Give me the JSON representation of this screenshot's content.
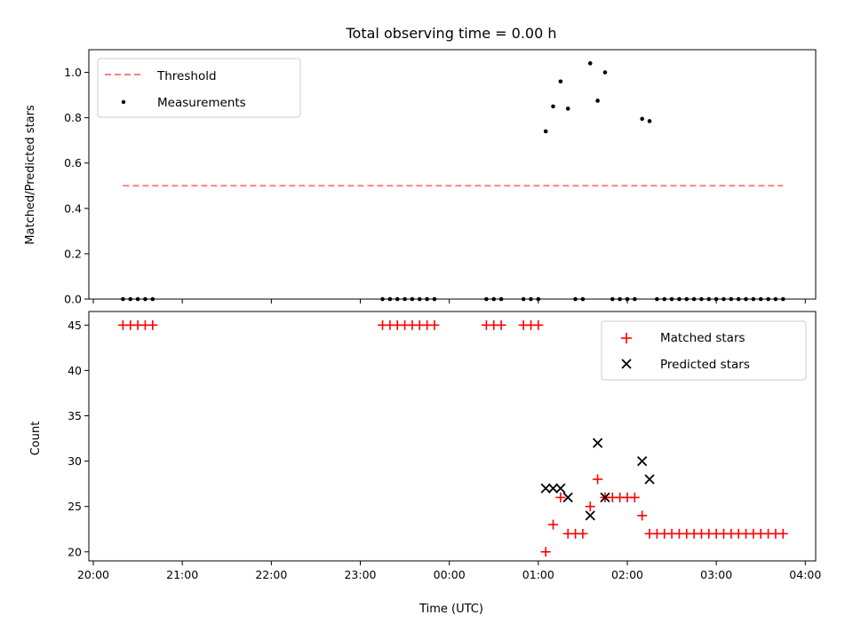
{
  "chart_data": [
    {
      "type": "scatter",
      "title": "Total observing time = 0.00 h",
      "ylabel": "Matched/Predicted stars",
      "xlabel": "",
      "ylim": [
        0,
        1.1
      ],
      "y_ticks": [
        "0.0",
        "0.2",
        "0.4",
        "0.6",
        "0.8",
        "1.0"
      ],
      "y_tick_values": [
        0,
        0.2,
        0.4,
        0.6,
        0.8,
        1.0
      ],
      "legend": {
        "placement": "upper-left"
      },
      "series": [
        {
          "name": "Threshold",
          "kind": "dashed-line",
          "color": "#ff7f7f",
          "x": [
            "20:20",
            "03:45"
          ],
          "y": [
            0.5,
            0.5
          ]
        },
        {
          "name": "Measurements",
          "kind": "points",
          "color": "#000000",
          "x": [
            "20:20",
            "20:25",
            "20:30",
            "20:35",
            "20:40",
            "23:15",
            "23:20",
            "23:25",
            "23:30",
            "23:35",
            "23:40",
            "23:45",
            "23:50",
            "00:25",
            "00:30",
            "00:35",
            "00:50",
            "00:55",
            "01:00",
            "01:05",
            "01:10",
            "01:15",
            "01:20",
            "01:25",
            "01:30",
            "01:35",
            "01:40",
            "01:45",
            "01:50",
            "01:55",
            "02:00",
            "02:05",
            "02:10",
            "02:15",
            "02:20",
            "02:25",
            "02:30",
            "02:35",
            "02:40",
            "02:45",
            "02:50",
            "02:55",
            "03:00",
            "03:05",
            "03:10",
            "03:15",
            "03:20",
            "03:25",
            "03:30",
            "03:35",
            "03:40",
            "03:45"
          ],
          "y": [
            0,
            0,
            0,
            0,
            0,
            0,
            0,
            0,
            0,
            0,
            0,
            0,
            0,
            0,
            0,
            0,
            0,
            0,
            0,
            0.74,
            0.85,
            0.96,
            0.84,
            0,
            0,
            1.04,
            0.875,
            1.0,
            0,
            0,
            0,
            0,
            0.795,
            0.785,
            0,
            0,
            0,
            0,
            0,
            0,
            0,
            0,
            0,
            0,
            0,
            0,
            0,
            0,
            0,
            0,
            0,
            0
          ]
        }
      ]
    },
    {
      "type": "scatter",
      "title": "",
      "xlabel": "Time (UTC)",
      "ylabel": "Count",
      "ylim": [
        19,
        46.5
      ],
      "x_ticks": [
        "20:00",
        "21:00",
        "22:00",
        "23:00",
        "00:00",
        "01:00",
        "02:00",
        "03:00",
        "04:00"
      ],
      "y_ticks": [
        "20",
        "25",
        "30",
        "35",
        "40",
        "45"
      ],
      "y_tick_values": [
        20,
        25,
        30,
        35,
        40,
        45
      ],
      "legend": {
        "placement": "upper-right"
      },
      "series": [
        {
          "name": "Matched stars",
          "kind": "plus",
          "color": "#ff0000",
          "x": [
            "20:20",
            "20:25",
            "20:30",
            "20:35",
            "20:40",
            "23:15",
            "23:20",
            "23:25",
            "23:30",
            "23:35",
            "23:40",
            "23:45",
            "23:50",
            "00:25",
            "00:30",
            "00:35",
            "00:50",
            "00:55",
            "01:00",
            "01:05",
            "01:10",
            "01:15",
            "01:20",
            "01:25",
            "01:30",
            "01:35",
            "01:40",
            "01:45",
            "01:50",
            "01:55",
            "02:00",
            "02:05",
            "02:10",
            "02:15",
            "02:20",
            "02:25",
            "02:30",
            "02:35",
            "02:40",
            "02:45",
            "02:50",
            "02:55",
            "03:00",
            "03:05",
            "03:10",
            "03:15",
            "03:20",
            "03:25",
            "03:30",
            "03:35",
            "03:40",
            "03:45"
          ],
          "y": [
            45,
            45,
            45,
            45,
            45,
            45,
            45,
            45,
            45,
            45,
            45,
            45,
            45,
            45,
            45,
            45,
            45,
            45,
            45,
            20,
            23,
            26,
            22,
            22,
            22,
            25,
            28,
            26,
            26,
            26,
            26,
            26,
            24,
            22,
            22,
            22,
            22,
            22,
            22,
            22,
            22,
            22,
            22,
            22,
            22,
            22,
            22,
            22,
            22,
            22,
            22,
            22
          ]
        },
        {
          "name": "Predicted stars",
          "kind": "cross",
          "color": "#000000",
          "x": [
            "01:05",
            "01:10",
            "01:15",
            "01:20",
            "01:35",
            "01:40",
            "01:45",
            "02:10",
            "02:15"
          ],
          "y": [
            27,
            27,
            27,
            26,
            24,
            32,
            26,
            30,
            28
          ]
        }
      ]
    }
  ]
}
